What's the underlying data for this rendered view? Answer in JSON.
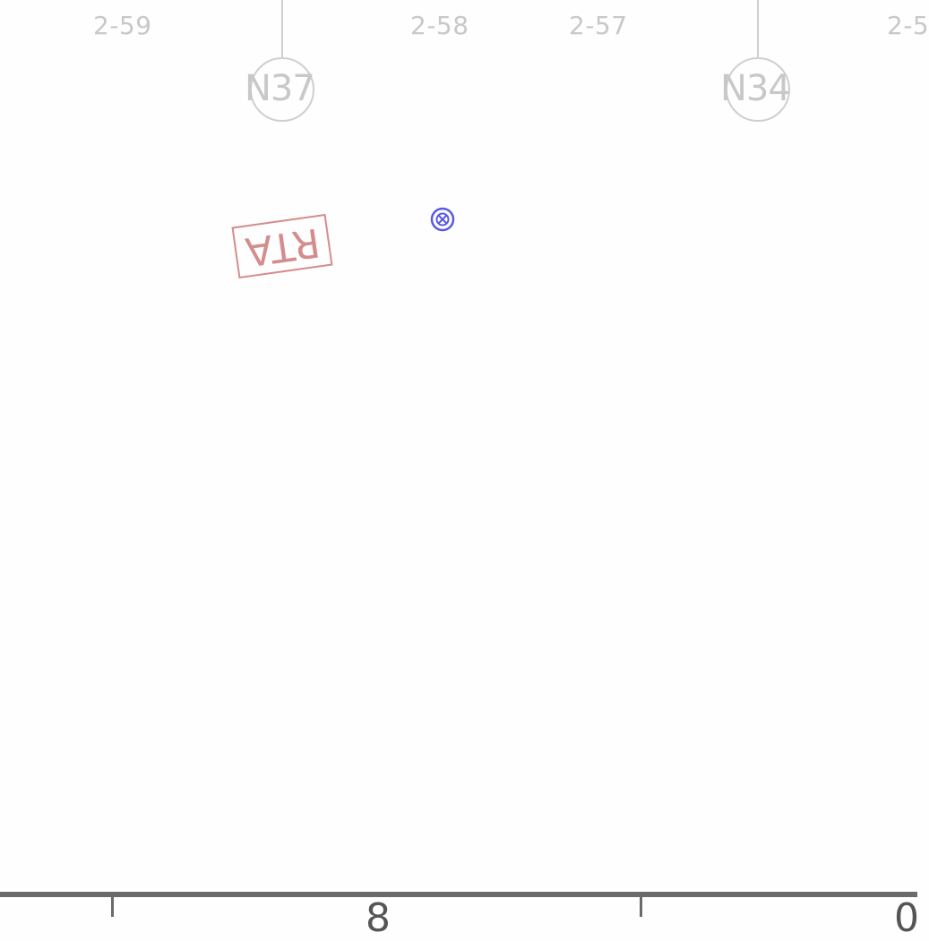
{
  "sheet_refs": [
    "2-59",
    "2-58",
    "2-57",
    "2-5"
  ],
  "grid_bubbles": [
    "N37",
    "N34"
  ],
  "stamp_text": "RTA",
  "marker_icon": "circle-x-marker-icon",
  "bottom_glyphs": [
    "8",
    "0"
  ],
  "colors": {
    "background": "#fefefe",
    "grid": "#c8c8c8",
    "stamp": "#d48d8d",
    "marker": "#5a5ae0",
    "frame": "#6a6a6a"
  }
}
